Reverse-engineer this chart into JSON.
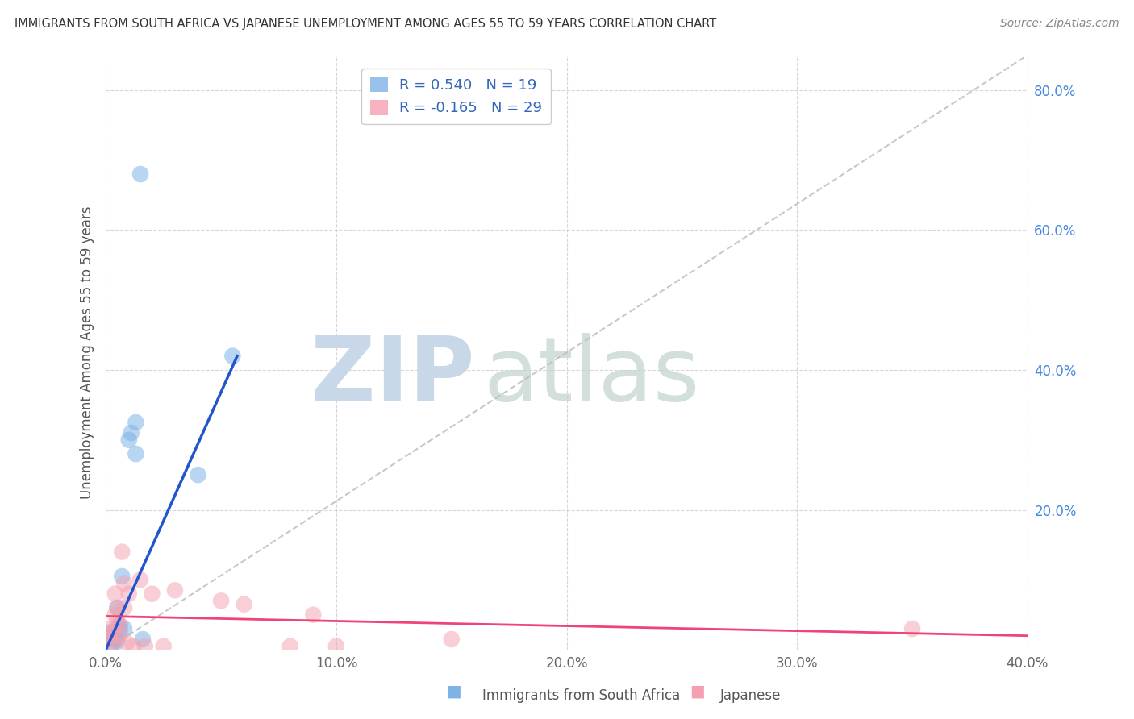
{
  "title": "IMMIGRANTS FROM SOUTH AFRICA VS JAPANESE UNEMPLOYMENT AMONG AGES 55 TO 59 YEARS CORRELATION CHART",
  "source": "Source: ZipAtlas.com",
  "ylabel": "Unemployment Among Ages 55 to 59 years",
  "xlabel_blue": "Immigrants from South Africa",
  "xlabel_pink": "Japanese",
  "legend_blue_r": "R = 0.540",
  "legend_blue_n": "N = 19",
  "legend_pink_r": "R = -0.165",
  "legend_pink_n": "N = 29",
  "xlim": [
    0.0,
    0.4
  ],
  "ylim": [
    0.0,
    0.85
  ],
  "xticks": [
    0.0,
    0.1,
    0.2,
    0.3,
    0.4
  ],
  "yticks": [
    0.2,
    0.4,
    0.6,
    0.8
  ],
  "xtick_labels": [
    "0.0%",
    "10.0%",
    "20.0%",
    "30.0%",
    "40.0%"
  ],
  "ytick_labels": [
    "20.0%",
    "40.0%",
    "60.0%",
    "80.0%"
  ],
  "blue_color": "#7EB3E8",
  "pink_color": "#F4A0B0",
  "trendline_blue_color": "#2255CC",
  "trendline_pink_color": "#EE4477",
  "diagonal_color": "#BBBBBB",
  "background_color": "#FFFFFF",
  "blue_scatter": [
    [
      0.001,
      0.02
    ],
    [
      0.002,
      0.025
    ],
    [
      0.003,
      0.018
    ],
    [
      0.003,
      0.01
    ],
    [
      0.004,
      0.015
    ],
    [
      0.005,
      0.012
    ],
    [
      0.005,
      0.06
    ],
    [
      0.006,
      0.035
    ],
    [
      0.006,
      0.028
    ],
    [
      0.007,
      0.105
    ],
    [
      0.008,
      0.03
    ],
    [
      0.01,
      0.3
    ],
    [
      0.011,
      0.31
    ],
    [
      0.013,
      0.325
    ],
    [
      0.013,
      0.28
    ],
    [
      0.016,
      0.015
    ],
    [
      0.04,
      0.25
    ],
    [
      0.015,
      0.68
    ],
    [
      0.055,
      0.42
    ]
  ],
  "pink_scatter": [
    [
      0.001,
      0.02
    ],
    [
      0.002,
      0.03
    ],
    [
      0.002,
      0.015
    ],
    [
      0.003,
      0.025
    ],
    [
      0.003,
      0.01
    ],
    [
      0.004,
      0.05
    ],
    [
      0.004,
      0.08
    ],
    [
      0.005,
      0.06
    ],
    [
      0.005,
      0.04
    ],
    [
      0.006,
      0.035
    ],
    [
      0.006,
      0.02
    ],
    [
      0.007,
      0.14
    ],
    [
      0.008,
      0.095
    ],
    [
      0.008,
      0.06
    ],
    [
      0.009,
      0.01
    ],
    [
      0.01,
      0.08
    ],
    [
      0.012,
      0.005
    ],
    [
      0.015,
      0.1
    ],
    [
      0.017,
      0.005
    ],
    [
      0.02,
      0.08
    ],
    [
      0.025,
      0.005
    ],
    [
      0.03,
      0.085
    ],
    [
      0.05,
      0.07
    ],
    [
      0.06,
      0.065
    ],
    [
      0.08,
      0.005
    ],
    [
      0.09,
      0.05
    ],
    [
      0.1,
      0.005
    ],
    [
      0.15,
      0.015
    ],
    [
      0.35,
      0.03
    ]
  ],
  "blue_trend_x": [
    0.0,
    0.057
  ],
  "blue_trend_y": [
    0.0,
    0.42
  ],
  "pink_trend_x": [
    0.0,
    0.4
  ],
  "pink_trend_y": [
    0.048,
    0.02
  ]
}
